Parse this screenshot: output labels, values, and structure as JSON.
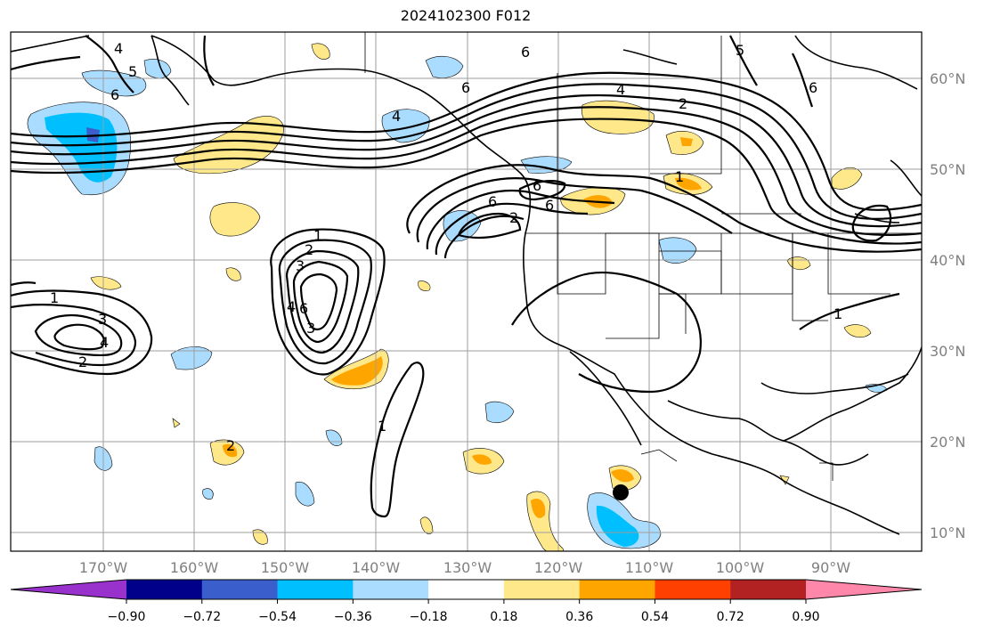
{
  "title": "2024102300 F012",
  "lat_ticks": [
    "60°N",
    "50°N",
    "40°N",
    "30°N",
    "20°N",
    "10°N"
  ],
  "lon_ticks": [
    "170°W",
    "160°W",
    "150°W",
    "140°W",
    "130°W",
    "120°W",
    "110°W",
    "100°W",
    "90°W"
  ],
  "colorbar": {
    "tick_labels": [
      "−0.90",
      "−0.72",
      "−0.54",
      "−0.36",
      "−0.18",
      "0.18",
      "0.36",
      "0.54",
      "0.72",
      "0.90"
    ],
    "colors": [
      "#9932cc",
      "#00008b",
      "#3a5fcd",
      "#00bfff",
      "#aadcff",
      "#ffffff",
      "#ffe88a",
      "#ffa500",
      "#ff4000",
      "#b22222",
      "#ff88aa"
    ]
  },
  "contour_labels": [
    "6",
    "5",
    "4",
    "6",
    "6",
    "4",
    "2",
    "6",
    "5",
    "6",
    "2",
    "6",
    "1",
    "1",
    "2",
    "3",
    "4",
    "1",
    "2",
    "3",
    "4",
    "6",
    "1",
    "1",
    "3",
    "4",
    "6",
    "2"
  ],
  "colors": {
    "land_line": "#000000",
    "grid": "#9e9e9e",
    "marker": "#000000"
  }
}
